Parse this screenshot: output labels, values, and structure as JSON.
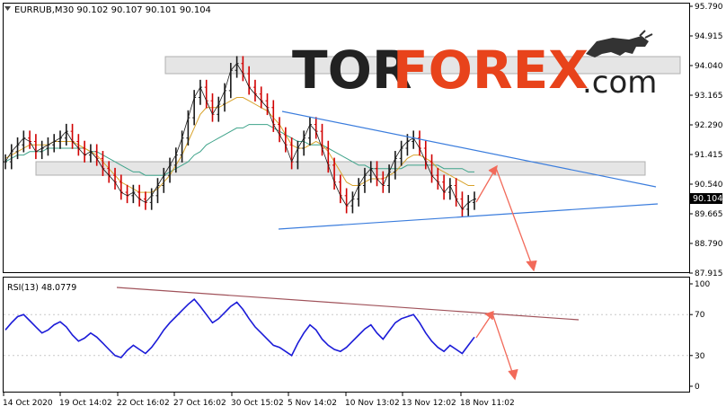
{
  "header": {
    "symbol_info": "EURRUB,M30  90.102 90.107 90.101 90.104",
    "collapse_icon": "triangle-down-icon"
  },
  "watermark": {
    "part1": "TOR",
    "part2": "FOREX",
    "part3": ".com",
    "icon": "bull-icon",
    "colors": {
      "tor": "#222222",
      "forex": "#e8431b",
      "com": "#222222"
    }
  },
  "colors": {
    "price_bars": "#1a1a1a",
    "bear_bars": "#d10000",
    "ma_fast": "#d8a22a",
    "ma_slow": "#3ea38a",
    "trendline": "#3b7ddd",
    "forecast_arrow": "#f26a5a",
    "rsi_line": "#1b1bd8",
    "rsi_trend": "#a0525a",
    "zone_fill": "#d0d0d0",
    "current_price_label": "#000000"
  },
  "chart_data": [
    {
      "type": "line",
      "title": "EURRUB,M30",
      "y_ticks": [
        "95.790",
        "94.915",
        "94.040",
        "93.165",
        "92.290",
        "91.415",
        "90.540",
        "89.665",
        "88.790",
        "87.915"
      ],
      "ylim": [
        87.915,
        95.79
      ],
      "current_price": "90.104",
      "x_ticks": [
        "14 Oct 2020",
        "19 Oct 14:02",
        "22 Oct 16:02",
        "27 Oct 16:02",
        "30 Oct 15:02",
        "5 Nov 14:02",
        "10 Nov 13:02",
        "13 Nov 12:02",
        "18 Nov 11:02"
      ],
      "series": [
        {
          "values": [
            91.2,
            91.5,
            91.7,
            91.9,
            91.8,
            91.5,
            91.6,
            91.7,
            91.8,
            91.9,
            92.1,
            91.8,
            91.6,
            91.4,
            91.5,
            91.3,
            91.0,
            90.8,
            90.6,
            90.3,
            90.2,
            90.3,
            90.1,
            90.0,
            90.2,
            90.5,
            90.8,
            91.1,
            91.4,
            91.9,
            92.5,
            93.1,
            93.4,
            93.0,
            92.6,
            92.9,
            93.3,
            93.9,
            94.1,
            93.8,
            93.4,
            93.2,
            93.0,
            92.8,
            92.3,
            92.0,
            91.7,
            91.2,
            91.6,
            91.9,
            92.3,
            92.1,
            91.6,
            91.1,
            90.6,
            90.2,
            89.9,
            90.1,
            90.5,
            90.8,
            91.0,
            90.7,
            90.5,
            90.9,
            91.3,
            91.6,
            91.8,
            91.9,
            91.6,
            91.2,
            90.8,
            90.6,
            90.3,
            90.5,
            90.1,
            89.8,
            90.0,
            90.1
          ]
        },
        {
          "values": [
            91.3,
            91.4,
            91.5,
            91.6,
            91.7,
            91.7,
            91.7,
            91.7,
            91.8,
            91.8,
            91.8,
            91.8,
            91.7,
            91.6,
            91.5,
            91.4,
            91.2,
            91.0,
            90.8,
            90.6,
            90.5,
            90.4,
            90.3,
            90.3,
            90.3,
            90.4,
            90.6,
            90.8,
            91.1,
            91.4,
            91.8,
            92.2,
            92.6,
            92.8,
            92.8,
            92.8,
            92.9,
            93.0,
            93.1,
            93.1,
            93.0,
            92.9,
            92.8,
            92.7,
            92.5,
            92.3,
            92.0,
            91.7,
            91.6,
            91.6,
            91.7,
            91.8,
            91.7,
            91.5,
            91.2,
            90.9,
            90.6,
            90.5,
            90.5,
            90.6,
            90.7,
            90.7,
            90.7,
            90.8,
            90.9,
            91.1,
            91.3,
            91.4,
            91.4,
            91.3,
            91.2,
            91.0,
            90.9,
            90.8,
            90.7,
            90.6,
            90.5,
            90.5
          ]
        },
        {
          "values": [
            91.2,
            91.3,
            91.4,
            91.4,
            91.5,
            91.5,
            91.5,
            91.6,
            91.6,
            91.6,
            91.6,
            91.6,
            91.6,
            91.6,
            91.5,
            91.5,
            91.4,
            91.3,
            91.2,
            91.1,
            91.0,
            90.9,
            90.9,
            90.8,
            90.8,
            90.8,
            90.8,
            90.9,
            91.0,
            91.1,
            91.2,
            91.4,
            91.5,
            91.7,
            91.8,
            91.9,
            92.0,
            92.1,
            92.2,
            92.2,
            92.3,
            92.3,
            92.3,
            92.3,
            92.2,
            92.1,
            92.0,
            91.9,
            91.8,
            91.8,
            91.7,
            91.7,
            91.7,
            91.6,
            91.5,
            91.4,
            91.3,
            91.2,
            91.1,
            91.1,
            91.0,
            91.0,
            91.0,
            91.0,
            91.0,
            91.0,
            91.1,
            91.1,
            91.1,
            91.1,
            91.1,
            91.1,
            91.0,
            91.0,
            91.0,
            91.0,
            90.9,
            90.9
          ]
        }
      ]
    },
    {
      "type": "line",
      "title": "RSI(13) 48.0779",
      "y_ticks": [
        "100",
        "70",
        "30",
        "0"
      ],
      "ylim": [
        0,
        100
      ],
      "series": [
        {
          "values": [
            55,
            62,
            68,
            70,
            64,
            58,
            52,
            55,
            60,
            63,
            58,
            50,
            44,
            47,
            52,
            48,
            42,
            36,
            30,
            28,
            35,
            40,
            36,
            32,
            38,
            46,
            55,
            62,
            68,
            74,
            80,
            85,
            78,
            70,
            62,
            66,
            72,
            78,
            82,
            75,
            66,
            58,
            52,
            46,
            40,
            38,
            34,
            30,
            42,
            52,
            60,
            55,
            46,
            40,
            36,
            34,
            38,
            44,
            50,
            56,
            60,
            52,
            46,
            54,
            62,
            66,
            68,
            70,
            62,
            52,
            44,
            38,
            34,
            40,
            36,
            32,
            40,
            48
          ]
        }
      ]
    }
  ]
}
